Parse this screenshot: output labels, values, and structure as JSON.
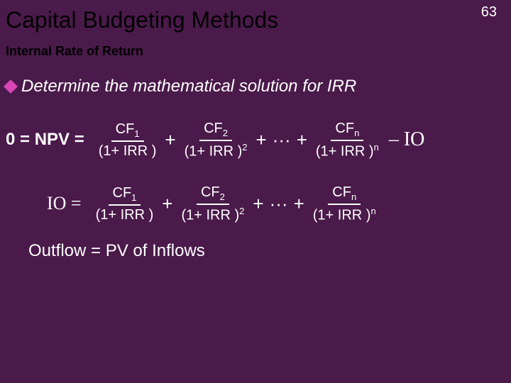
{
  "page_number": "63",
  "title": "Capital Budgeting Methods",
  "subtitle": "Internal Rate of Return",
  "bullet": "Determine the mathematical solution for IRR",
  "eq1_lhs": "0 = NPV =",
  "eq2_lhs": "IO =",
  "frac1_num": "CF",
  "frac1_sub": "1",
  "frac1_den_a": "(1+ IRR )",
  "frac2_num": "CF",
  "frac2_sub": "2",
  "frac2_den_a": "(1+ IRR )",
  "frac2_sup": "2",
  "fracn_num": "CF",
  "fracn_sub": "n",
  "fracn_den_a": "(1+ IRR )",
  "fracn_sup": "n",
  "plus": "+",
  "ellipsis": "···",
  "minus_io": "– IO",
  "outflow": "Outflow = PV of Inflows",
  "colors": {
    "background": "#4a1a4a",
    "text_light": "#ffffff",
    "text_dark": "#000000",
    "diamond": "#d946b8"
  }
}
